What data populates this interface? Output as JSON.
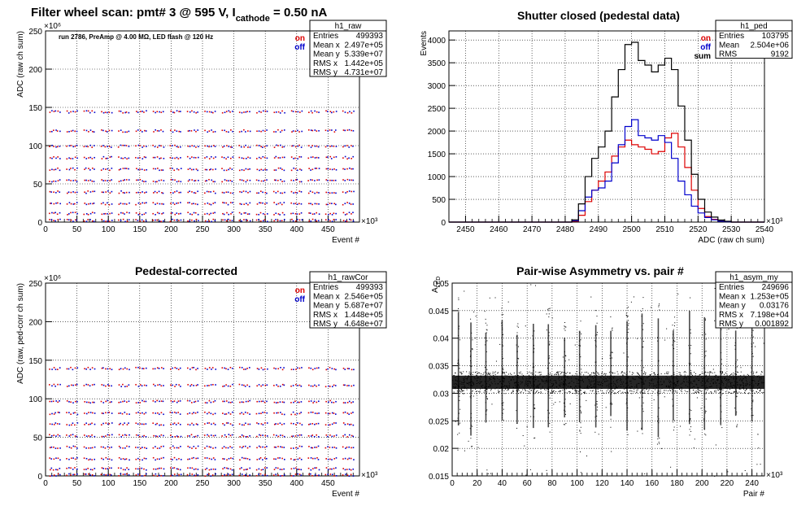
{
  "header": {
    "prefix": "Filter wheel scan: pmt#   3 @   595 V, I",
    "sub": "cathode",
    "suffix": " = 0.50 nA"
  },
  "colors": {
    "on": "#dd0000",
    "off": "#0000cc",
    "sum": "#000000"
  },
  "chart_data": [
    {
      "id": "raw",
      "type": "scatter",
      "title": "",
      "xlabel": "Event #",
      "ylabel": "ADC (raw ch sum)",
      "x_exponent": "×10³",
      "y_exponent": "×10⁶",
      "xlim": [
        0,
        500
      ],
      "ylim": [
        0,
        250
      ],
      "xticks": [
        "0",
        "50",
        "100",
        "150",
        "200",
        "250",
        "300",
        "350",
        "400",
        "450"
      ],
      "yticks": [
        "0",
        "50",
        "100",
        "150",
        "200",
        "250"
      ],
      "annotation": "run 2786, PreAmp @ 4.00 MΩ, LED flash @  120 Hz",
      "legend": [
        "on",
        "off"
      ],
      "band_levels": [
        145,
        120,
        100,
        85,
        70,
        55,
        40,
        25,
        12,
        3
      ],
      "stats": {
        "name": "h1_raw",
        "rows": [
          [
            "Entries",
            "499393"
          ],
          [
            "Mean x",
            "2.497e+05"
          ],
          [
            "Mean y",
            "5.339e+07"
          ],
          [
            "RMS x",
            "1.442e+05"
          ],
          [
            "RMS y",
            "4.731e+07"
          ]
        ]
      }
    },
    {
      "id": "ped",
      "type": "line",
      "title": "Shutter closed (pedestal data)",
      "xlabel": "ADC (raw ch sum)",
      "ylabel": "Events",
      "x_exponent": "×10³",
      "xlim": [
        2445,
        2540
      ],
      "ylim": [
        0,
        4200
      ],
      "xticks": [
        "2450",
        "2460",
        "2470",
        "2480",
        "2490",
        "2500",
        "2510",
        "2520",
        "2530",
        "2540"
      ],
      "yticks": [
        "0",
        "500",
        "1000",
        "1500",
        "2000",
        "2500",
        "3000",
        "3500",
        "4000"
      ],
      "legend": [
        "on",
        "off",
        "sum"
      ],
      "x": [
        2482,
        2484,
        2486,
        2488,
        2490,
        2492,
        2494,
        2496,
        2498,
        2500,
        2502,
        2504,
        2506,
        2508,
        2510,
        2512,
        2514,
        2516,
        2518,
        2520,
        2522,
        2524,
        2526,
        2528,
        2530
      ],
      "series": [
        {
          "name": "on",
          "values": [
            20,
            150,
            450,
            700,
            900,
            1100,
            1450,
            1650,
            1800,
            1700,
            1650,
            1600,
            1500,
            1550,
            1850,
            1950,
            1650,
            1200,
            700,
            300,
            120,
            60,
            25,
            10,
            0
          ]
        },
        {
          "name": "off",
          "values": [
            30,
            250,
            550,
            700,
            750,
            900,
            1300,
            1700,
            2100,
            2250,
            1900,
            1850,
            1800,
            1900,
            1750,
            1400,
            900,
            600,
            350,
            200,
            100,
            50,
            20,
            8,
            0
          ]
        },
        {
          "name": "sum",
          "values": [
            50,
            400,
            1000,
            1400,
            1650,
            2000,
            2750,
            3350,
            3900,
            3950,
            3550,
            3450,
            3300,
            3450,
            3600,
            3350,
            2550,
            1800,
            1050,
            500,
            220,
            110,
            45,
            18,
            0
          ]
        }
      ],
      "stats": {
        "name": "h1_ped",
        "rows": [
          [
            "Entries",
            "103795"
          ],
          [
            "Mean",
            "2.504e+06"
          ],
          [
            "RMS",
            "9192"
          ]
        ]
      }
    },
    {
      "id": "rawCor",
      "type": "scatter",
      "title": "Pedestal-corrected",
      "xlabel": "Event #",
      "ylabel": "ADC (raw, ped-corr ch sum)",
      "x_exponent": "×10³",
      "y_exponent": "×10⁶",
      "xlim": [
        0,
        500
      ],
      "ylim": [
        0,
        250
      ],
      "xticks": [
        "0",
        "50",
        "100",
        "150",
        "200",
        "250",
        "300",
        "350",
        "400",
        "450"
      ],
      "yticks": [
        "0",
        "50",
        "100",
        "150",
        "200",
        "250"
      ],
      "legend": [
        "on",
        "off"
      ],
      "band_levels": [
        140,
        118,
        97,
        82,
        68,
        53,
        38,
        23,
        10,
        2
      ],
      "stats": {
        "name": "h1_rawCor",
        "rows": [
          [
            "Entries",
            "499393"
          ],
          [
            "Mean x",
            "2.546e+05"
          ],
          [
            "Mean y",
            "5.687e+07"
          ],
          [
            "RMS x",
            "1.448e+05"
          ],
          [
            "RMS y",
            "4.648e+07"
          ]
        ]
      }
    },
    {
      "id": "asym",
      "type": "scatter",
      "title": "Pair-wise Asymmetry vs. pair #",
      "xlabel": "Pair #",
      "ylabel": "A_LED",
      "x_exponent": "×10³",
      "xlim": [
        0,
        250
      ],
      "ylim": [
        0.015,
        0.05
      ],
      "xticks": [
        "0",
        "20",
        "40",
        "60",
        "80",
        "100",
        "120",
        "140",
        "160",
        "180",
        "200",
        "220",
        "240"
      ],
      "yticks": [
        "0.015",
        "0.02",
        "0.025",
        "0.03",
        "0.035",
        "0.04",
        "0.045",
        "0.05"
      ],
      "center": 0.032,
      "spike_x": [
        5,
        15,
        27,
        40,
        52,
        65,
        77,
        90,
        102,
        115,
        127,
        140,
        152,
        165,
        177,
        190,
        202,
        215,
        227,
        240
      ],
      "stats": {
        "name": "h1_asym_my",
        "rows": [
          [
            "Entries",
            "249696"
          ],
          [
            "Mean x",
            "1.253e+05"
          ],
          [
            "Mean y",
            "0.03176"
          ],
          [
            "RMS x",
            "7.198e+04"
          ],
          [
            "RMS y",
            "0.001892"
          ]
        ]
      }
    }
  ]
}
